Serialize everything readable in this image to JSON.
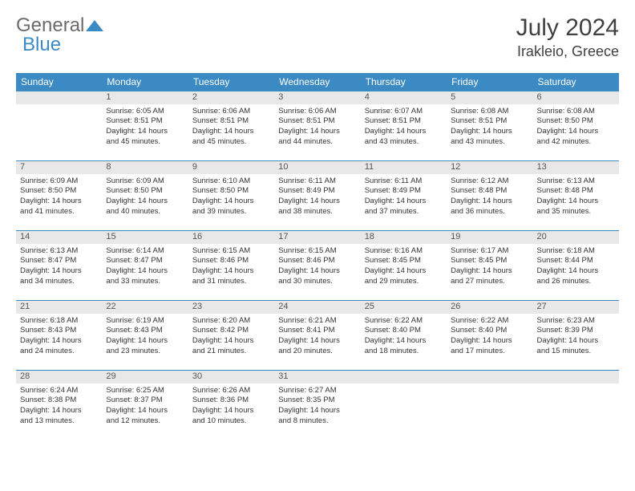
{
  "logo": {
    "general": "General",
    "blue": "Blue"
  },
  "header": {
    "month_title": "July 2024",
    "location": "Irakleio, Greece"
  },
  "colors": {
    "header_bg": "#3b8ac4",
    "header_text": "#ffffff",
    "daynum_bg": "#e8e8e8",
    "daynum_border": "#3b8ac4",
    "page_bg": "#ffffff",
    "text": "#333333",
    "title_text": "#404040"
  },
  "weekdays": [
    "Sunday",
    "Monday",
    "Tuesday",
    "Wednesday",
    "Thursday",
    "Friday",
    "Saturday"
  ],
  "weeks": [
    {
      "days": [
        {
          "num": "",
          "lines": [
            "",
            "",
            "",
            ""
          ]
        },
        {
          "num": "1",
          "lines": [
            "Sunrise: 6:05 AM",
            "Sunset: 8:51 PM",
            "Daylight: 14 hours",
            "and 45 minutes."
          ]
        },
        {
          "num": "2",
          "lines": [
            "Sunrise: 6:06 AM",
            "Sunset: 8:51 PM",
            "Daylight: 14 hours",
            "and 45 minutes."
          ]
        },
        {
          "num": "3",
          "lines": [
            "Sunrise: 6:06 AM",
            "Sunset: 8:51 PM",
            "Daylight: 14 hours",
            "and 44 minutes."
          ]
        },
        {
          "num": "4",
          "lines": [
            "Sunrise: 6:07 AM",
            "Sunset: 8:51 PM",
            "Daylight: 14 hours",
            "and 43 minutes."
          ]
        },
        {
          "num": "5",
          "lines": [
            "Sunrise: 6:08 AM",
            "Sunset: 8:51 PM",
            "Daylight: 14 hours",
            "and 43 minutes."
          ]
        },
        {
          "num": "6",
          "lines": [
            "Sunrise: 6:08 AM",
            "Sunset: 8:50 PM",
            "Daylight: 14 hours",
            "and 42 minutes."
          ]
        }
      ]
    },
    {
      "days": [
        {
          "num": "7",
          "lines": [
            "Sunrise: 6:09 AM",
            "Sunset: 8:50 PM",
            "Daylight: 14 hours",
            "and 41 minutes."
          ]
        },
        {
          "num": "8",
          "lines": [
            "Sunrise: 6:09 AM",
            "Sunset: 8:50 PM",
            "Daylight: 14 hours",
            "and 40 minutes."
          ]
        },
        {
          "num": "9",
          "lines": [
            "Sunrise: 6:10 AM",
            "Sunset: 8:50 PM",
            "Daylight: 14 hours",
            "and 39 minutes."
          ]
        },
        {
          "num": "10",
          "lines": [
            "Sunrise: 6:11 AM",
            "Sunset: 8:49 PM",
            "Daylight: 14 hours",
            "and 38 minutes."
          ]
        },
        {
          "num": "11",
          "lines": [
            "Sunrise: 6:11 AM",
            "Sunset: 8:49 PM",
            "Daylight: 14 hours",
            "and 37 minutes."
          ]
        },
        {
          "num": "12",
          "lines": [
            "Sunrise: 6:12 AM",
            "Sunset: 8:48 PM",
            "Daylight: 14 hours",
            "and 36 minutes."
          ]
        },
        {
          "num": "13",
          "lines": [
            "Sunrise: 6:13 AM",
            "Sunset: 8:48 PM",
            "Daylight: 14 hours",
            "and 35 minutes."
          ]
        }
      ]
    },
    {
      "days": [
        {
          "num": "14",
          "lines": [
            "Sunrise: 6:13 AM",
            "Sunset: 8:47 PM",
            "Daylight: 14 hours",
            "and 34 minutes."
          ]
        },
        {
          "num": "15",
          "lines": [
            "Sunrise: 6:14 AM",
            "Sunset: 8:47 PM",
            "Daylight: 14 hours",
            "and 33 minutes."
          ]
        },
        {
          "num": "16",
          "lines": [
            "Sunrise: 6:15 AM",
            "Sunset: 8:46 PM",
            "Daylight: 14 hours",
            "and 31 minutes."
          ]
        },
        {
          "num": "17",
          "lines": [
            "Sunrise: 6:15 AM",
            "Sunset: 8:46 PM",
            "Daylight: 14 hours",
            "and 30 minutes."
          ]
        },
        {
          "num": "18",
          "lines": [
            "Sunrise: 6:16 AM",
            "Sunset: 8:45 PM",
            "Daylight: 14 hours",
            "and 29 minutes."
          ]
        },
        {
          "num": "19",
          "lines": [
            "Sunrise: 6:17 AM",
            "Sunset: 8:45 PM",
            "Daylight: 14 hours",
            "and 27 minutes."
          ]
        },
        {
          "num": "20",
          "lines": [
            "Sunrise: 6:18 AM",
            "Sunset: 8:44 PM",
            "Daylight: 14 hours",
            "and 26 minutes."
          ]
        }
      ]
    },
    {
      "days": [
        {
          "num": "21",
          "lines": [
            "Sunrise: 6:18 AM",
            "Sunset: 8:43 PM",
            "Daylight: 14 hours",
            "and 24 minutes."
          ]
        },
        {
          "num": "22",
          "lines": [
            "Sunrise: 6:19 AM",
            "Sunset: 8:43 PM",
            "Daylight: 14 hours",
            "and 23 minutes."
          ]
        },
        {
          "num": "23",
          "lines": [
            "Sunrise: 6:20 AM",
            "Sunset: 8:42 PM",
            "Daylight: 14 hours",
            "and 21 minutes."
          ]
        },
        {
          "num": "24",
          "lines": [
            "Sunrise: 6:21 AM",
            "Sunset: 8:41 PM",
            "Daylight: 14 hours",
            "and 20 minutes."
          ]
        },
        {
          "num": "25",
          "lines": [
            "Sunrise: 6:22 AM",
            "Sunset: 8:40 PM",
            "Daylight: 14 hours",
            "and 18 minutes."
          ]
        },
        {
          "num": "26",
          "lines": [
            "Sunrise: 6:22 AM",
            "Sunset: 8:40 PM",
            "Daylight: 14 hours",
            "and 17 minutes."
          ]
        },
        {
          "num": "27",
          "lines": [
            "Sunrise: 6:23 AM",
            "Sunset: 8:39 PM",
            "Daylight: 14 hours",
            "and 15 minutes."
          ]
        }
      ]
    },
    {
      "days": [
        {
          "num": "28",
          "lines": [
            "Sunrise: 6:24 AM",
            "Sunset: 8:38 PM",
            "Daylight: 14 hours",
            "and 13 minutes."
          ]
        },
        {
          "num": "29",
          "lines": [
            "Sunrise: 6:25 AM",
            "Sunset: 8:37 PM",
            "Daylight: 14 hours",
            "and 12 minutes."
          ]
        },
        {
          "num": "30",
          "lines": [
            "Sunrise: 6:26 AM",
            "Sunset: 8:36 PM",
            "Daylight: 14 hours",
            "and 10 minutes."
          ]
        },
        {
          "num": "31",
          "lines": [
            "Sunrise: 6:27 AM",
            "Sunset: 8:35 PM",
            "Daylight: 14 hours",
            "and 8 minutes."
          ]
        },
        {
          "num": "",
          "lines": [
            "",
            "",
            "",
            ""
          ]
        },
        {
          "num": "",
          "lines": [
            "",
            "",
            "",
            ""
          ]
        },
        {
          "num": "",
          "lines": [
            "",
            "",
            "",
            ""
          ]
        }
      ]
    }
  ]
}
